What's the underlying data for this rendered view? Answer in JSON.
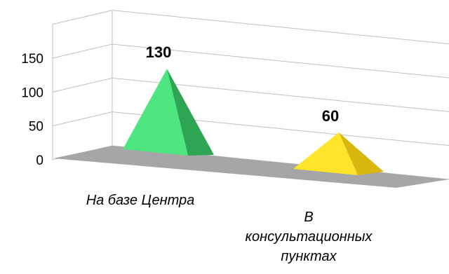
{
  "chart_data": {
    "type": "bar",
    "shape": "pyramid-3d",
    "categories": [
      "На базе Центра",
      "В консультационных пунктах"
    ],
    "series": [
      {
        "values": [
          130,
          60
        ]
      }
    ],
    "data_labels": [
      "130",
      "60"
    ],
    "ylim": [
      0,
      150
    ],
    "y_ticks": [
      "0",
      "50",
      "100",
      "150"
    ],
    "grid": true,
    "legend": false,
    "colors": {
      "pyramid_1_front": "#4de57f",
      "pyramid_1_side": "#2ea553",
      "pyramid_2_front": "#ffe529",
      "pyramid_2_side": "#d9b70f",
      "floor": "#a6a6a6",
      "gridline": "#c0c0c0"
    }
  }
}
